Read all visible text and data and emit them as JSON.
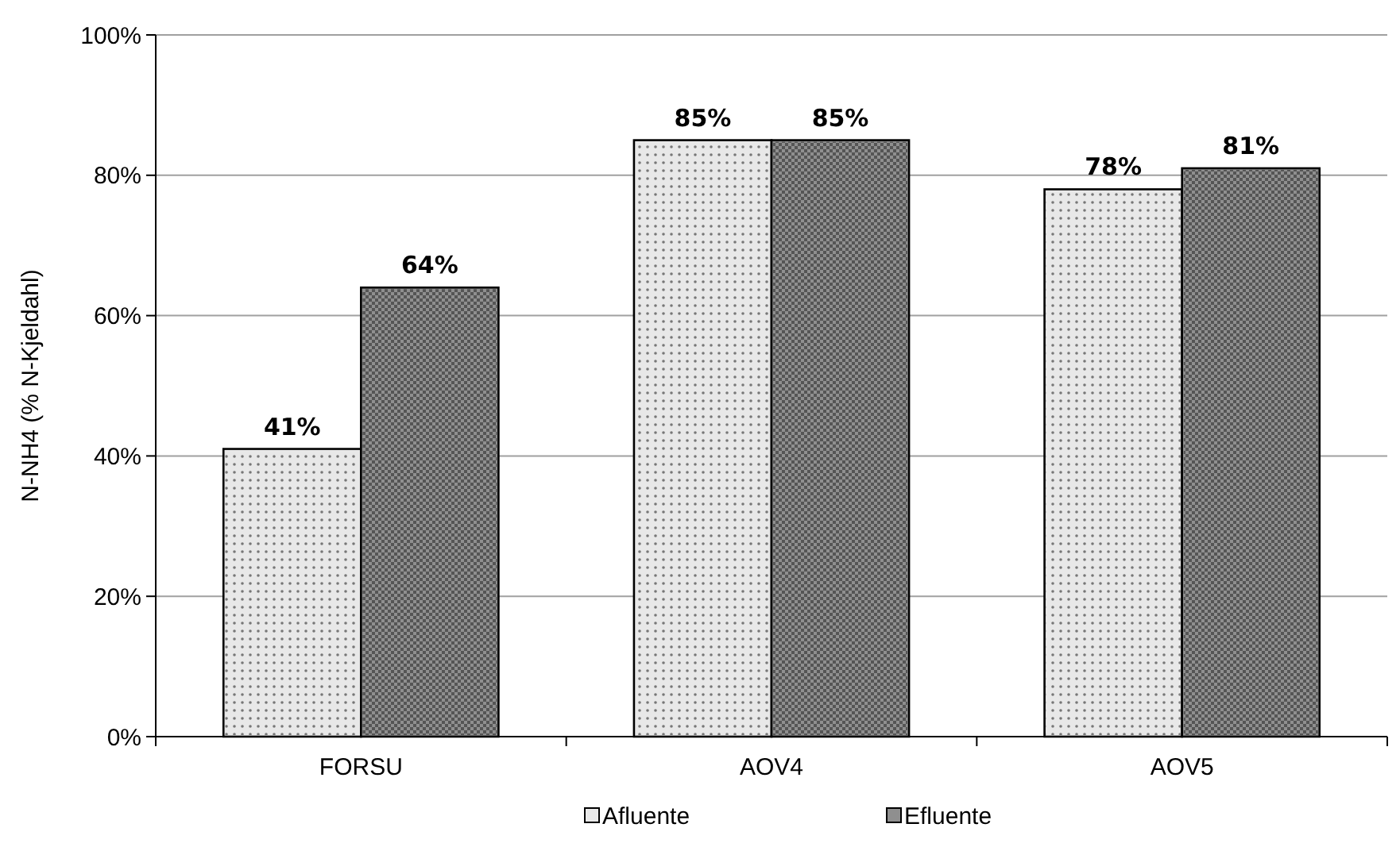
{
  "chart_data": {
    "type": "bar",
    "ylabel": "N-NH4 (% N-Kjeldahl)",
    "categories": [
      "FORSU",
      "AOV4",
      "AOV5"
    ],
    "series": [
      {
        "name": "Afluente",
        "color": "#e8e8e8",
        "values": [
          41,
          85,
          78
        ],
        "value_labels": [
          "41%",
          "85%",
          "78%"
        ]
      },
      {
        "name": "Efluente",
        "color": "#8f8f8f",
        "values": [
          64,
          85,
          81
        ],
        "value_labels": [
          "64%",
          "85%",
          "81%"
        ]
      }
    ],
    "ylim": [
      0,
      100
    ],
    "yticks": [
      {
        "value": 0,
        "label": "0%"
      },
      {
        "value": 20,
        "label": "20%"
      },
      {
        "value": 40,
        "label": "40%"
      },
      {
        "value": 60,
        "label": "60%"
      },
      {
        "value": 80,
        "label": "80%"
      },
      {
        "value": 100,
        "label": "100%"
      }
    ],
    "grid": "y",
    "legend": "bottom"
  }
}
